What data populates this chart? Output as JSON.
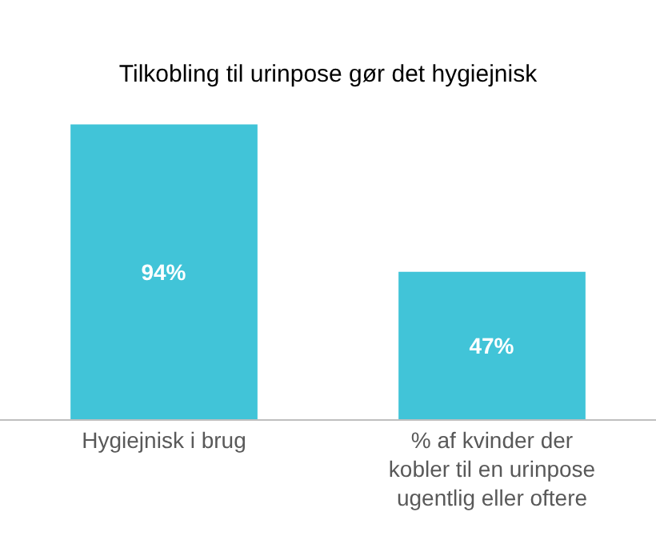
{
  "chart_data": {
    "type": "bar",
    "title": "Tilkobling til urinpose gør det hygiejnisk",
    "categories": [
      "Hygiejnisk i brug",
      "% af kvinder der kobler til en urinpose ugentlig eller oftere"
    ],
    "values": [
      94,
      47
    ],
    "value_labels": [
      "94%",
      "47%"
    ],
    "color": "#41c4d8",
    "tick_labels": "x"
  }
}
